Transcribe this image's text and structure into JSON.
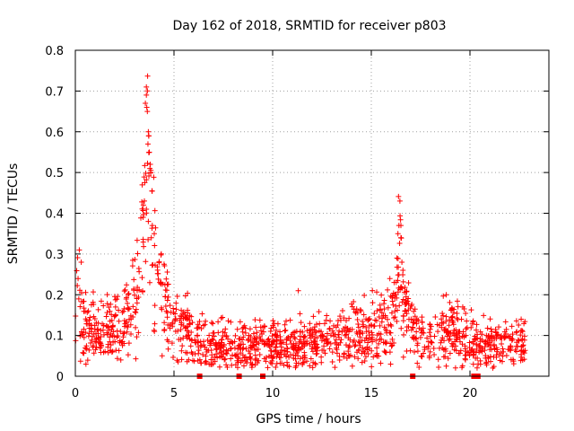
{
  "chart_data": {
    "type": "scatter",
    "title": "Day 162 of 2018, SRMTID for receiver p803",
    "xlabel": "GPS time / hours",
    "ylabel": "SRMTID / TECUs",
    "xlim": [
      0,
      24
    ],
    "ylim": [
      0,
      0.8
    ],
    "grid": true,
    "marker": "+",
    "series_color": "#ff0000",
    "x_ticks": [
      0,
      5,
      10,
      15,
      20
    ],
    "y_ticks": [
      0,
      0.1,
      0.2,
      0.3,
      0.4,
      0.5,
      0.6,
      0.7,
      0.8
    ],
    "x_tick_labels": [
      "0",
      "5",
      "10",
      "15",
      "20"
    ],
    "y_tick_labels": [
      "0",
      "0.1",
      "0.2",
      "0.3",
      "0.4",
      "0.5",
      "0.6",
      "0.7",
      "0.8"
    ],
    "envelope": {
      "x": [
        0.0,
        0.1,
        0.2,
        0.3,
        0.5,
        0.8,
        1.0,
        1.3,
        1.6,
        2.0,
        2.3,
        2.6,
        2.9,
        3.1,
        3.3,
        3.45,
        3.55,
        3.65,
        3.75,
        3.85,
        3.95,
        4.1,
        4.3,
        4.6,
        4.9,
        5.2,
        5.6,
        6.0,
        6.4,
        6.8,
        7.5,
        8.0,
        8.5,
        9.0,
        9.5,
        10.0,
        11.0,
        12.0,
        13.0,
        14.0,
        14.8,
        15.3,
        15.8,
        16.1,
        16.3,
        16.4,
        16.5,
        16.7,
        16.9,
        17.2,
        17.6,
        18.0,
        18.5,
        19.0,
        19.5,
        20.0,
        20.4,
        20.7,
        21.0,
        21.5,
        22.0,
        22.5,
        22.8
      ],
      "y": [
        0.14,
        0.19,
        0.16,
        0.13,
        0.12,
        0.11,
        0.1,
        0.13,
        0.12,
        0.11,
        0.12,
        0.14,
        0.16,
        0.2,
        0.26,
        0.34,
        0.45,
        0.6,
        0.56,
        0.42,
        0.3,
        0.22,
        0.2,
        0.17,
        0.14,
        0.13,
        0.11,
        0.1,
        0.09,
        0.08,
        0.075,
        0.07,
        0.07,
        0.075,
        0.08,
        0.075,
        0.075,
        0.08,
        0.09,
        0.1,
        0.11,
        0.12,
        0.13,
        0.15,
        0.2,
        0.3,
        0.25,
        0.18,
        0.14,
        0.11,
        0.1,
        0.1,
        0.1,
        0.11,
        0.1,
        0.09,
        0.07,
        0.08,
        0.08,
        0.075,
        0.08,
        0.08,
        0.08
      ]
    },
    "spikes": [
      {
        "x": 3.6,
        "y": 0.71
      },
      {
        "x": 3.6,
        "y": 0.69
      },
      {
        "x": 3.55,
        "y": 0.67
      },
      {
        "x": 3.62,
        "y": 0.66
      },
      {
        "x": 3.65,
        "y": 0.65
      },
      {
        "x": 3.7,
        "y": 0.6
      },
      {
        "x": 3.72,
        "y": 0.59
      },
      {
        "x": 3.68,
        "y": 0.57
      },
      {
        "x": 3.75,
        "y": 0.55
      },
      {
        "x": 3.8,
        "y": 0.52
      },
      {
        "x": 3.78,
        "y": 0.51
      },
      {
        "x": 3.82,
        "y": 0.5
      },
      {
        "x": 3.5,
        "y": 0.43
      },
      {
        "x": 3.45,
        "y": 0.42
      },
      {
        "x": 3.6,
        "y": 0.41
      },
      {
        "x": 3.7,
        "y": 0.38
      },
      {
        "x": 3.9,
        "y": 0.37
      },
      {
        "x": 4.0,
        "y": 0.35
      },
      {
        "x": 3.85,
        "y": 0.34
      },
      {
        "x": 0.2,
        "y": 0.31
      },
      {
        "x": 0.3,
        "y": 0.28
      },
      {
        "x": 16.45,
        "y": 0.43
      },
      {
        "x": 16.4,
        "y": 0.37
      },
      {
        "x": 16.5,
        "y": 0.37
      },
      {
        "x": 16.35,
        "y": 0.35
      },
      {
        "x": 16.5,
        "y": 0.34
      },
      {
        "x": 16.3,
        "y": 0.29
      },
      {
        "x": 16.55,
        "y": 0.28
      },
      {
        "x": 11.3,
        "y": 0.21
      },
      {
        "x": 18.8,
        "y": 0.2
      }
    ],
    "gap_markers": [
      {
        "x": 6.3,
        "y": 0.0
      },
      {
        "x": 8.3,
        "y": 0.0
      },
      {
        "x": 9.5,
        "y": 0.0
      },
      {
        "x": 17.1,
        "y": 0.0
      },
      {
        "x": 20.2,
        "y": 0.0
      },
      {
        "x": 20.4,
        "y": 0.0
      }
    ],
    "x_data_end": 22.8
  }
}
